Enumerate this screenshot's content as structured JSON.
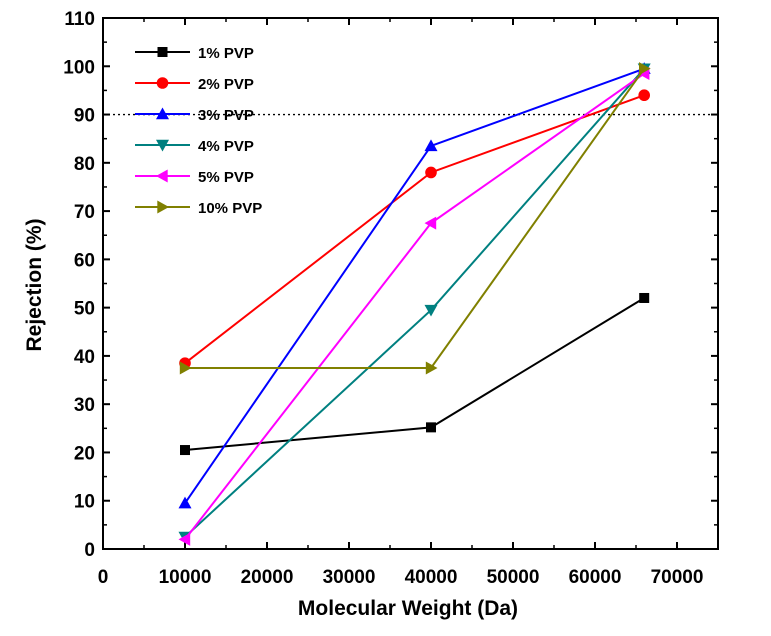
{
  "chart_data": {
    "type": "line",
    "xlabel": "Molecular Weight (Da)",
    "ylabel": "Rejection (%)",
    "xlim": [
      0,
      75000
    ],
    "ylim": [
      0,
      110
    ],
    "x_ticks": [
      0,
      10000,
      20000,
      30000,
      40000,
      50000,
      60000,
      70000
    ],
    "y_ticks": [
      0,
      10,
      20,
      30,
      40,
      50,
      60,
      70,
      80,
      90,
      100,
      110
    ],
    "x_tick_labels": [
      "0",
      "10000",
      "20000",
      "30000",
      "40000",
      "50000",
      "60000",
      "70000"
    ],
    "y_tick_labels": [
      "0",
      "10",
      "20",
      "30",
      "40",
      "50",
      "60",
      "70",
      "80",
      "90",
      "100",
      "110"
    ],
    "reference_line": {
      "y": 90,
      "style": "dotted"
    },
    "legend_position": "top-left",
    "grid": false,
    "x": [
      10000,
      40000,
      66000
    ],
    "series": [
      {
        "name": "1% PVP",
        "values": [
          20.5,
          25.2,
          52
        ],
        "color": "#000000",
        "marker": "square"
      },
      {
        "name": "2% PVP",
        "values": [
          38.5,
          78,
          94
        ],
        "color": "#ff0000",
        "marker": "circle"
      },
      {
        "name": "3% PVP",
        "values": [
          9.5,
          83.5,
          99.5
        ],
        "color": "#0000ff",
        "marker": "triangle-up"
      },
      {
        "name": "4% PVP",
        "values": [
          2.5,
          49.5,
          99.5
        ],
        "color": "#008080",
        "marker": "triangle-down"
      },
      {
        "name": "5% PVP",
        "values": [
          2,
          67.5,
          98.5
        ],
        "color": "#ff00ff",
        "marker": "triangle-left"
      },
      {
        "name": "10% PVP",
        "values": [
          37.5,
          37.5,
          99.5
        ],
        "color": "#808000",
        "marker": "triangle-right"
      }
    ]
  }
}
